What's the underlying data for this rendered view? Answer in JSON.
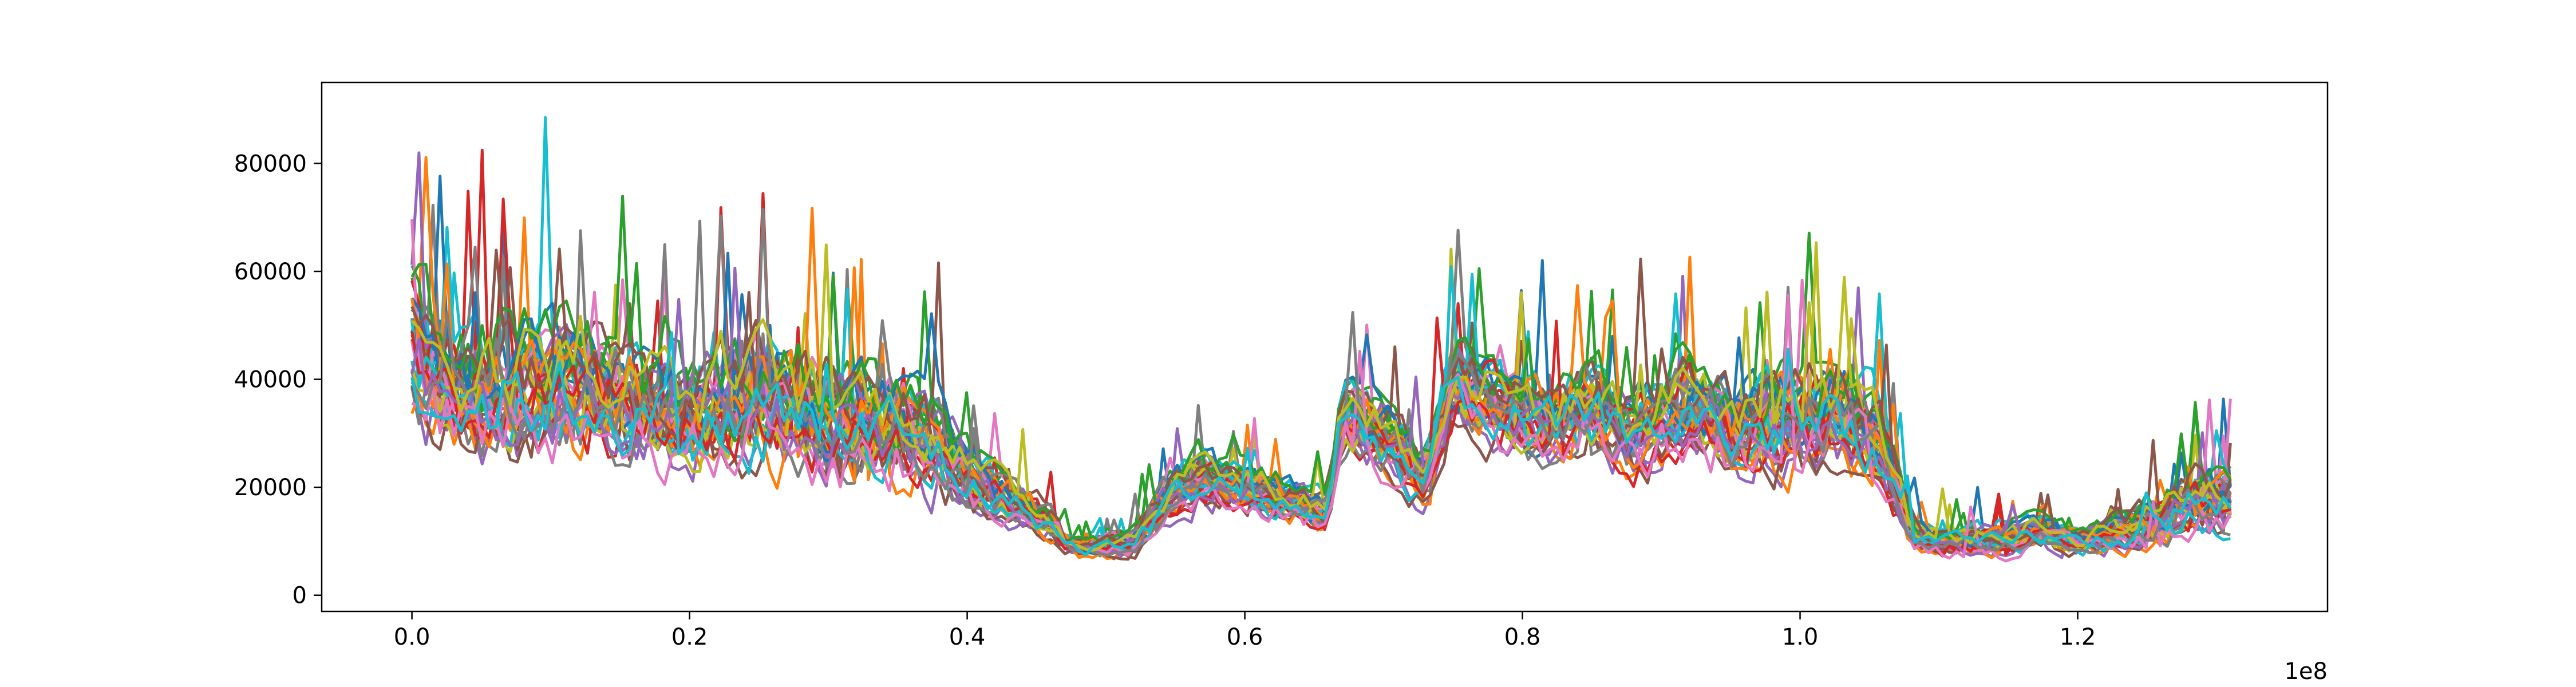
{
  "chart_data": {
    "type": "line",
    "title": "",
    "xlabel": "",
    "ylabel": "",
    "x_offset_label": "1e8",
    "x_scale": 100000000,
    "xlim": [
      -6500000,
      138000000
    ],
    "ylim": [
      -3000,
      95000
    ],
    "x_ticks": [
      0.0,
      0.2,
      0.4,
      0.6,
      0.8,
      1.0,
      1.2
    ],
    "x_tick_labels": [
      "0.0",
      "0.2",
      "0.4",
      "0.6",
      "0.8",
      "1.0",
      "1.2"
    ],
    "y_ticks": [
      0,
      20000,
      40000,
      60000,
      80000
    ],
    "y_tick_labels": [
      "0",
      "20000",
      "40000",
      "60000",
      "80000"
    ],
    "grid": false,
    "legend": "none",
    "series_count": 40,
    "x_points": 260,
    "x_range": [
      0,
      131000000
    ],
    "colors": [
      "#1f77b4",
      "#ff7f0e",
      "#2ca02c",
      "#d62728",
      "#9467bd",
      "#8c564b",
      "#e377c2",
      "#7f7f7f",
      "#bcbd22",
      "#17becf"
    ],
    "envelope": {
      "x": [
        0,
        2000000,
        5000000,
        10000000,
        15000000,
        20000000,
        25000000,
        30000000,
        35000000,
        38000000,
        40000000,
        43000000,
        46000000,
        47000000,
        48000000,
        52000000,
        55000000,
        57000000,
        60000000,
        63000000,
        66000000,
        67000000,
        70000000,
        73000000,
        75000000,
        78000000,
        82000000,
        85000000,
        88000000,
        92000000,
        95000000,
        100000000,
        103000000,
        106000000,
        108000000,
        110000000,
        114000000,
        117000000,
        120000000,
        123000000,
        126000000,
        128000000,
        131000000
      ],
      "center": [
        50000,
        40000,
        38000,
        40000,
        37000,
        33000,
        37000,
        33000,
        32000,
        28000,
        22000,
        18000,
        14000,
        10000,
        9000,
        10000,
        20000,
        22000,
        20000,
        18000,
        15000,
        35000,
        30000,
        22000,
        40000,
        36000,
        32000,
        35000,
        30000,
        36000,
        32000,
        33000,
        36000,
        28000,
        12000,
        10000,
        10000,
        12000,
        10000,
        12000,
        14000,
        18000,
        18000
      ],
      "spread": [
        30000,
        22000,
        24000,
        24000,
        22000,
        20000,
        24000,
        22000,
        22000,
        18000,
        12000,
        9000,
        7000,
        4000,
        4000,
        5000,
        10000,
        10000,
        9000,
        8000,
        8000,
        14000,
        14000,
        12000,
        16000,
        16000,
        16000,
        16000,
        16000,
        18000,
        18000,
        20000,
        20000,
        16000,
        6000,
        5000,
        6000,
        6000,
        5000,
        7000,
        10000,
        12000,
        12000
      ]
    }
  }
}
